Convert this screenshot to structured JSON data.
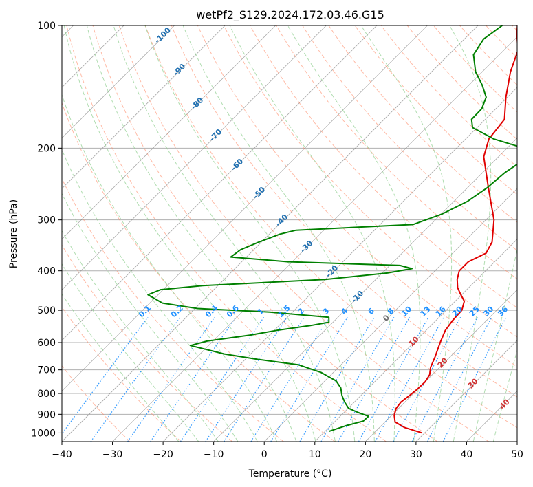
{
  "chart_data": {
    "type": "line",
    "title": "wetPf2_S129.2024.172.03.46.G15",
    "xlabel": "Temperature (°C)",
    "ylabel": "Pressure (hPa)",
    "xlim": [
      -40,
      50
    ],
    "ylim": [
      1050,
      100
    ],
    "y_scale": "log",
    "grid": true,
    "x_ticks": [
      "−40",
      "−30",
      "−20",
      "−10",
      "0",
      "10",
      "20",
      "30",
      "40",
      "50"
    ],
    "x_tick_values": [
      -40,
      -30,
      -20,
      -10,
      0,
      10,
      20,
      30,
      40,
      50
    ],
    "y_ticks": [
      "100",
      "200",
      "300",
      "400",
      "500",
      "600",
      "700",
      "800",
      "900",
      "1000"
    ],
    "y_tick_values": [
      100,
      200,
      300,
      400,
      500,
      600,
      700,
      800,
      900,
      1000
    ],
    "series": [
      {
        "color": "#e00000",
        "points": [
          [
            1000,
            29.5
          ],
          [
            970,
            25
          ],
          [
            940,
            22
          ],
          [
            905,
            20.5
          ],
          [
            870,
            19.5
          ],
          [
            840,
            19.2
          ],
          [
            810,
            19.6
          ],
          [
            780,
            19.9
          ],
          [
            750,
            20
          ],
          [
            720,
            19.5
          ],
          [
            690,
            18.2
          ],
          [
            650,
            17
          ],
          [
            600,
            15.2
          ],
          [
            560,
            13.8
          ],
          [
            530,
            13.3
          ],
          [
            500,
            13.1
          ],
          [
            475,
            11.8
          ],
          [
            455,
            9.5
          ],
          [
            440,
            7.8
          ],
          [
            420,
            6.1
          ],
          [
            400,
            4.8
          ],
          [
            380,
            4.8
          ],
          [
            362,
            6.6
          ],
          [
            340,
            5.6
          ],
          [
            300,
            1.6
          ],
          [
            250,
            -5.9
          ],
          [
            210,
            -12.9
          ],
          [
            190,
            -15.4
          ],
          [
            170,
            -16.2
          ],
          [
            150,
            -20.3
          ],
          [
            130,
            -24.4
          ],
          [
            115,
            -27.2
          ],
          [
            105,
            -30.6
          ],
          [
            100,
            -32.2
          ]
        ]
      },
      {
        "color": "#008000",
        "points": [
          [
            990,
            10.8
          ],
          [
            960,
            13
          ],
          [
            935,
            15.5
          ],
          [
            910,
            15.6
          ],
          [
            890,
            12.7
          ],
          [
            870,
            10.1
          ],
          [
            840,
            8.1
          ],
          [
            810,
            6.3
          ],
          [
            775,
            4.5
          ],
          [
            745,
            2.2
          ],
          [
            710,
            -2.5
          ],
          [
            680,
            -8.5
          ],
          [
            660,
            -17.5
          ],
          [
            640,
            -25.2
          ],
          [
            610,
            -33.6
          ],
          [
            595,
            -31.2
          ],
          [
            575,
            -23.8
          ],
          [
            560,
            -19.5
          ],
          [
            545,
            -13.8
          ],
          [
            535,
            -10.8
          ],
          [
            520,
            -11.8
          ],
          [
            505,
            -24.5
          ],
          [
            495,
            -39.5
          ],
          [
            480,
            -47.5
          ],
          [
            458,
            -52
          ],
          [
            445,
            -50.5
          ],
          [
            435,
            -43
          ],
          [
            420,
            -20
          ],
          [
            405,
            -9
          ],
          [
            395,
            -5
          ],
          [
            388,
            -8
          ],
          [
            380,
            -31
          ],
          [
            370,
            -43.1
          ],
          [
            355,
            -42.6
          ],
          [
            340,
            -40.5
          ],
          [
            325,
            -37.9
          ],
          [
            318,
            -35.5
          ],
          [
            308,
            -13.5
          ],
          [
            290,
            -9.8
          ],
          [
            270,
            -7.3
          ],
          [
            250,
            -6.1
          ],
          [
            230,
            -5.6
          ],
          [
            210,
            -4.1
          ],
          [
            200,
            -6.7
          ],
          [
            190,
            -14.4
          ],
          [
            178,
            -20.9
          ],
          [
            170,
            -22.7
          ],
          [
            160,
            -22.8
          ],
          [
            150,
            -24.2
          ],
          [
            140,
            -27.4
          ],
          [
            130,
            -31.3
          ],
          [
            118,
            -35.1
          ],
          [
            108,
            -36.2
          ],
          [
            100,
            -35.2
          ]
        ]
      }
    ],
    "dry_adiabat_labels": [
      "-100",
      "-90",
      "-80",
      "-70",
      "-60",
      "-50",
      "-40",
      "-30",
      "-20",
      "-10",
      "0",
      "10",
      "20",
      "30",
      "40"
    ],
    "mixing_ratio_labels": [
      "0.1",
      "0.2",
      "0.4",
      "0.6",
      "1",
      "1.5",
      "2",
      "3",
      "4",
      "6",
      "8",
      "10",
      "13",
      "16",
      "20",
      "25",
      "30",
      "36"
    ],
    "colors": {
      "temperature": "#e00000",
      "dewpoint": "#008000",
      "isotherms": "#808080",
      "dry_adiabats": "#ff8c69",
      "moist_adiabats": "#8fcf8f",
      "mixing_ratio": "#1e90ff",
      "dry_adiabat_labels_cold": "#1f6fb0",
      "dry_adiabat_labels_warm": "#d03030",
      "zero_label": "#707070",
      "isobars": "#b0b0b0"
    }
  }
}
